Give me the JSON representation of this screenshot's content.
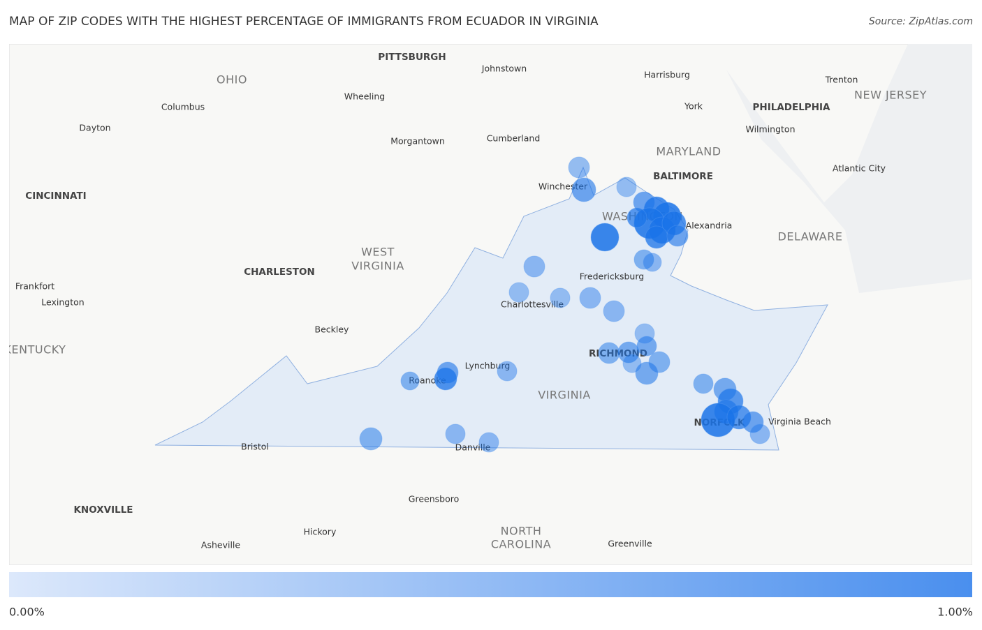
{
  "header": {
    "title": "MAP OF ZIP CODES WITH THE HIGHEST PERCENTAGE OF IMMIGRANTS FROM ECUADOR IN VIRGINIA",
    "source": "Source: ZipAtlas.com"
  },
  "map": {
    "places": [
      "PITTSBURGH",
      "Johnstown",
      "OHIO",
      "Harrisburg",
      "Trenton",
      "NEW JERSEY",
      "Columbus",
      "Wheeling",
      "York",
      "PHILADELPHIA",
      "Dayton",
      "Morgantown",
      "Cumberland",
      "Wilmington",
      "MARYLAND",
      "Atlantic City",
      "BALTIMORE",
      "Winchester",
      "CINCINNATI",
      "WASHINGTON",
      "Alexandria",
      "DELAWARE",
      "WEST",
      "VIRGINIA",
      "CHARLESTON",
      "Fredericksburg",
      "Frankfort",
      "Lexington",
      "Charlottesville",
      "Beckley",
      "KENTUCKY",
      "RICHMOND",
      "Lynchburg",
      "Roanoke",
      "VIRGINIA",
      "NORFOLK",
      "Virginia Beach",
      "Bristol",
      "Danville",
      "Greensboro",
      "KNOXVILLE",
      "NORTH",
      "CAROLINA",
      "Hickory",
      "Asheville",
      "Greenville"
    ]
  },
  "legend": {
    "min_label": "0.00%",
    "max_label": "1.00%"
  }
}
